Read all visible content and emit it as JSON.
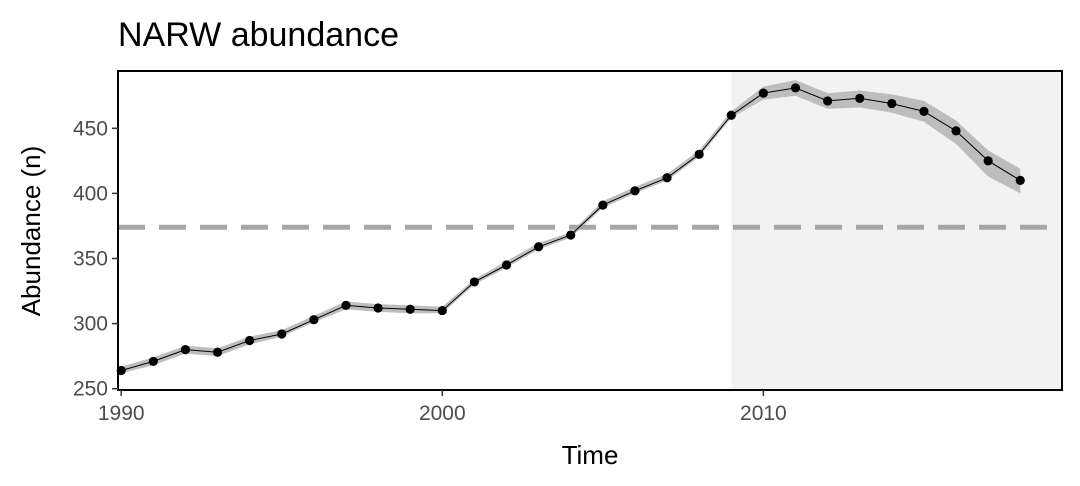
{
  "chart_data": {
    "type": "line",
    "title": "NARW abundance",
    "xlabel": "Time",
    "ylabel": "Abundance (n)",
    "xlim": [
      1989.9,
      2019.3
    ],
    "ylim": [
      249,
      494
    ],
    "x_ticks": [
      1990,
      2000,
      2010
    ],
    "y_ticks": [
      250,
      300,
      350,
      400,
      450
    ],
    "grid": false,
    "legend": "none",
    "reference_line": {
      "y": 374,
      "style": "dashed",
      "color": "#a6a6a6"
    },
    "shaded_region": {
      "x_start": 2009,
      "x_end": 2019.3,
      "color": "#f2f2f2"
    },
    "series": [
      {
        "x": [
          1990,
          1991,
          1992,
          1993,
          1994,
          1995,
          1996,
          1997,
          1998,
          1999,
          2000,
          2001,
          2002,
          2003,
          2004,
          2005,
          2006,
          2007,
          2008,
          2009,
          2010,
          2011,
          2012,
          2013,
          2014,
          2015,
          2016,
          2017,
          2018
        ],
        "values": [
          264,
          271,
          280,
          278,
          287,
          292,
          303,
          314,
          312,
          311,
          310,
          332,
          345,
          359,
          368,
          391,
          402,
          412,
          430,
          460,
          477,
          481,
          471,
          473,
          469,
          463,
          448,
          425,
          410
        ],
        "lower": [
          262,
          268,
          277,
          275,
          284,
          290,
          301,
          311,
          309,
          308,
          308,
          330,
          343,
          357,
          366,
          389,
          400,
          410,
          428,
          458,
          472,
          475,
          465,
          466,
          462,
          455,
          438,
          413,
          400
        ],
        "upper": [
          267,
          274,
          283,
          281,
          290,
          295,
          306,
          317,
          315,
          314,
          313,
          334,
          348,
          362,
          370,
          394,
          405,
          415,
          433,
          463,
          482,
          487,
          477,
          479,
          476,
          471,
          456,
          433,
          419
        ],
        "color": "#000000",
        "band_color": "#bdbdbd"
      }
    ]
  }
}
